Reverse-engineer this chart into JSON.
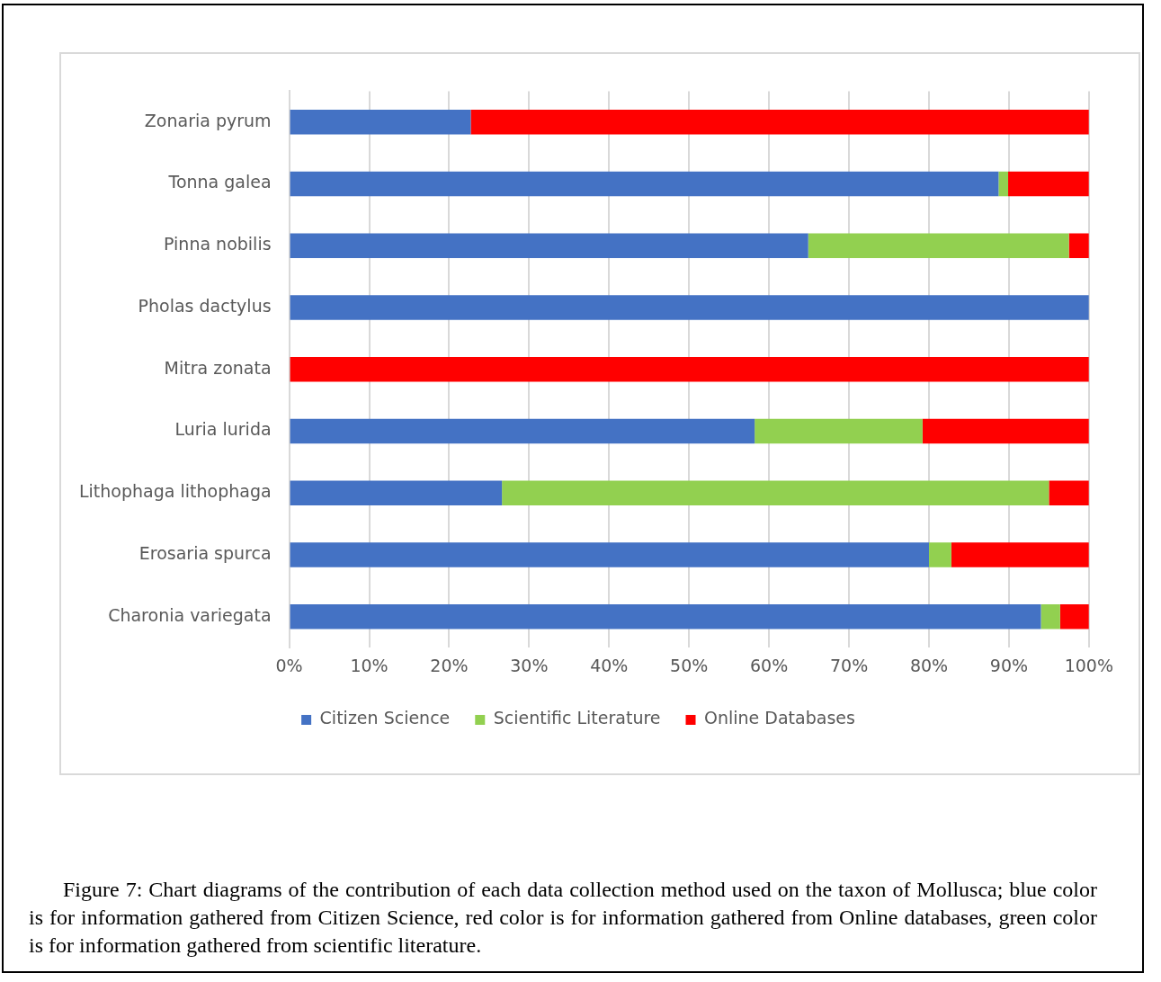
{
  "chart_data": {
    "type": "bar",
    "orientation": "horizontal",
    "stacked": true,
    "categories": [
      "Zonaria pyrum",
      "Tonna galea",
      "Pinna nobilis",
      "Pholas dactylus",
      "Mitra zonata",
      "Luria lurida",
      "Lithophaga lithophaga",
      "Erosaria spurca",
      "Charonia variegata"
    ],
    "series": [
      {
        "name": "Citizen Science",
        "color": "#4472c4",
        "values": [
          22.7,
          88.7,
          64.9,
          100,
          0,
          58.2,
          26.6,
          80.0,
          94.0
        ]
      },
      {
        "name": "Scientific Literature",
        "color": "#92d050",
        "values": [
          0,
          1.2,
          32.6,
          0,
          0,
          21.0,
          68.4,
          2.8,
          2.4
        ]
      },
      {
        "name": "Online Databases",
        "color": "#ff0000",
        "values": [
          77.3,
          10.1,
          2.5,
          0,
          100,
          20.8,
          5.0,
          17.2,
          3.6
        ]
      }
    ],
    "xlim": [
      0,
      100
    ],
    "xticks": [
      {
        "value": 0,
        "label": "0%"
      },
      {
        "value": 10,
        "label": "10%"
      },
      {
        "value": 20,
        "label": "20%"
      },
      {
        "value": 30,
        "label": "30%"
      },
      {
        "value": 40,
        "label": "40%"
      },
      {
        "value": 50,
        "label": "50%"
      },
      {
        "value": 60,
        "label": "60%"
      },
      {
        "value": 70,
        "label": "70%"
      },
      {
        "value": 80,
        "label": "80%"
      },
      {
        "value": 90,
        "label": "90%"
      },
      {
        "value": 100,
        "label": "100%"
      }
    ],
    "grid": "x",
    "legend": "bottom",
    "annotations": [
      "Figure 7: Chart diagrams of the contribution of each data collection method used on the taxon of Mollusca; blue color is for information gathered from Citizen Science, red color is for information gathered from Online databases, green color is for information gathered from scientific literature."
    ]
  }
}
